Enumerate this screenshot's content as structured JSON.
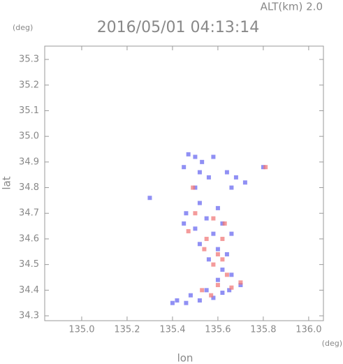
{
  "chart_data": {
    "type": "scatter",
    "title": "2016/05/01 04:13:14",
    "annotation": "ALT(km) 2.0",
    "x_label": "lon",
    "y_label": "lat",
    "x_unit": "(deg)",
    "y_unit": "(deg)",
    "xlim": [
      134.837,
      136.065
    ],
    "ylim": [
      34.281,
      35.352
    ],
    "xticks": [
      {
        "value": 135,
        "label": "135.0"
      },
      135.2,
      135.4,
      135.6,
      135.8,
      {
        "value": 136,
        "label": "136.0"
      }
    ],
    "yticks": [
      34.3,
      34.4,
      34.5,
      34.6,
      34.7,
      34.8,
      34.9,
      {
        "value": 35,
        "label": "35.0"
      },
      35.1,
      35.2,
      35.3
    ],
    "series": [
      {
        "color": "#6b6bf0",
        "x": [
          135.47,
          135.5,
          135.53,
          135.58,
          135.45,
          135.52,
          135.56,
          135.64,
          135.68,
          135.72,
          135.66,
          135.8,
          135.5,
          135.3,
          135.52,
          135.6,
          135.46,
          135.55,
          135.62,
          135.5,
          135.45,
          135.58,
          135.66,
          135.52,
          135.6,
          135.64,
          135.56,
          135.62,
          135.66,
          135.6,
          135.55,
          135.65,
          135.7,
          135.48,
          135.42,
          135.52,
          135.58,
          135.62,
          135.4,
          135.46
        ],
        "y": [
          34.93,
          34.92,
          34.9,
          34.92,
          34.88,
          34.86,
          34.84,
          34.86,
          34.84,
          34.82,
          34.8,
          34.88,
          34.8,
          34.76,
          34.74,
          34.72,
          34.7,
          34.68,
          34.66,
          34.64,
          34.66,
          34.62,
          34.62,
          34.58,
          34.56,
          34.54,
          34.52,
          34.48,
          34.46,
          34.44,
          34.4,
          34.4,
          34.42,
          34.38,
          34.36,
          34.36,
          34.37,
          34.39,
          34.35,
          34.35
        ]
      },
      {
        "color": "#f07a7a",
        "x": [
          135.81,
          135.49,
          135.5,
          135.58,
          135.63,
          135.47,
          135.55,
          135.62,
          135.54,
          135.6,
          135.58,
          135.62,
          135.64,
          135.6,
          135.7,
          135.66,
          135.57,
          135.53
        ],
        "y": [
          34.88,
          34.8,
          34.7,
          34.68,
          34.66,
          34.63,
          34.6,
          34.6,
          34.56,
          34.54,
          34.5,
          34.52,
          34.46,
          34.42,
          34.43,
          34.41,
          34.38,
          34.4
        ]
      }
    ]
  }
}
